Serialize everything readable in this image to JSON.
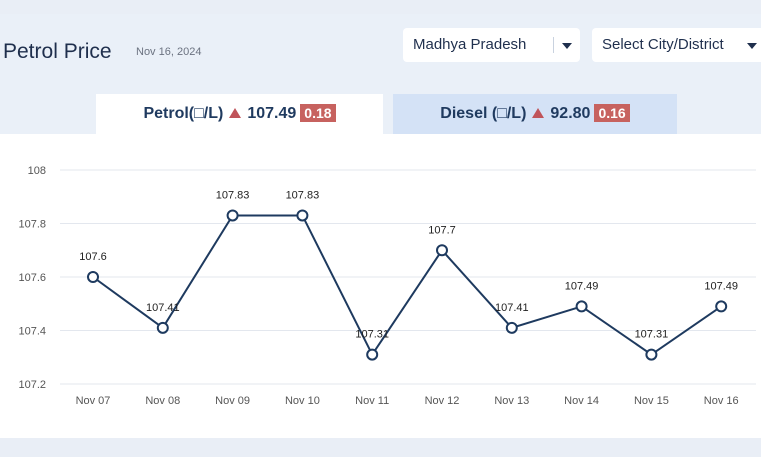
{
  "header": {
    "title": "Petrol Price",
    "date": "Nov 16, 2024",
    "state_select": "Madhya Pradesh",
    "city_select": "Select City/District"
  },
  "tabs": [
    {
      "label": "Petrol(□/L)",
      "price": "107.49",
      "change": "0.18"
    },
    {
      "label": "Diesel (□/L)",
      "price": "92.80",
      "change": "0.16"
    }
  ],
  "colors": {
    "line": "#1e3a5f",
    "badge": "#c7625f",
    "grid": "#e3e7ee"
  },
  "chart_data": {
    "type": "line",
    "categories": [
      "Nov 07",
      "Nov 08",
      "Nov 09",
      "Nov 10",
      "Nov 11",
      "Nov 12",
      "Nov 13",
      "Nov 14",
      "Nov 15",
      "Nov 16"
    ],
    "values": [
      107.6,
      107.41,
      107.83,
      107.83,
      107.31,
      107.7,
      107.41,
      107.49,
      107.31,
      107.49
    ],
    "labels": [
      "107.6",
      "107.41",
      "107.83",
      "107.83",
      "107.31",
      "107.7",
      "107.41",
      "107.49",
      "107.31",
      "107.49"
    ],
    "ylim": [
      107.2,
      108
    ],
    "yticks": [
      "107.2",
      "107.4",
      "107.6",
      "107.8",
      "108"
    ],
    "grid": true
  }
}
